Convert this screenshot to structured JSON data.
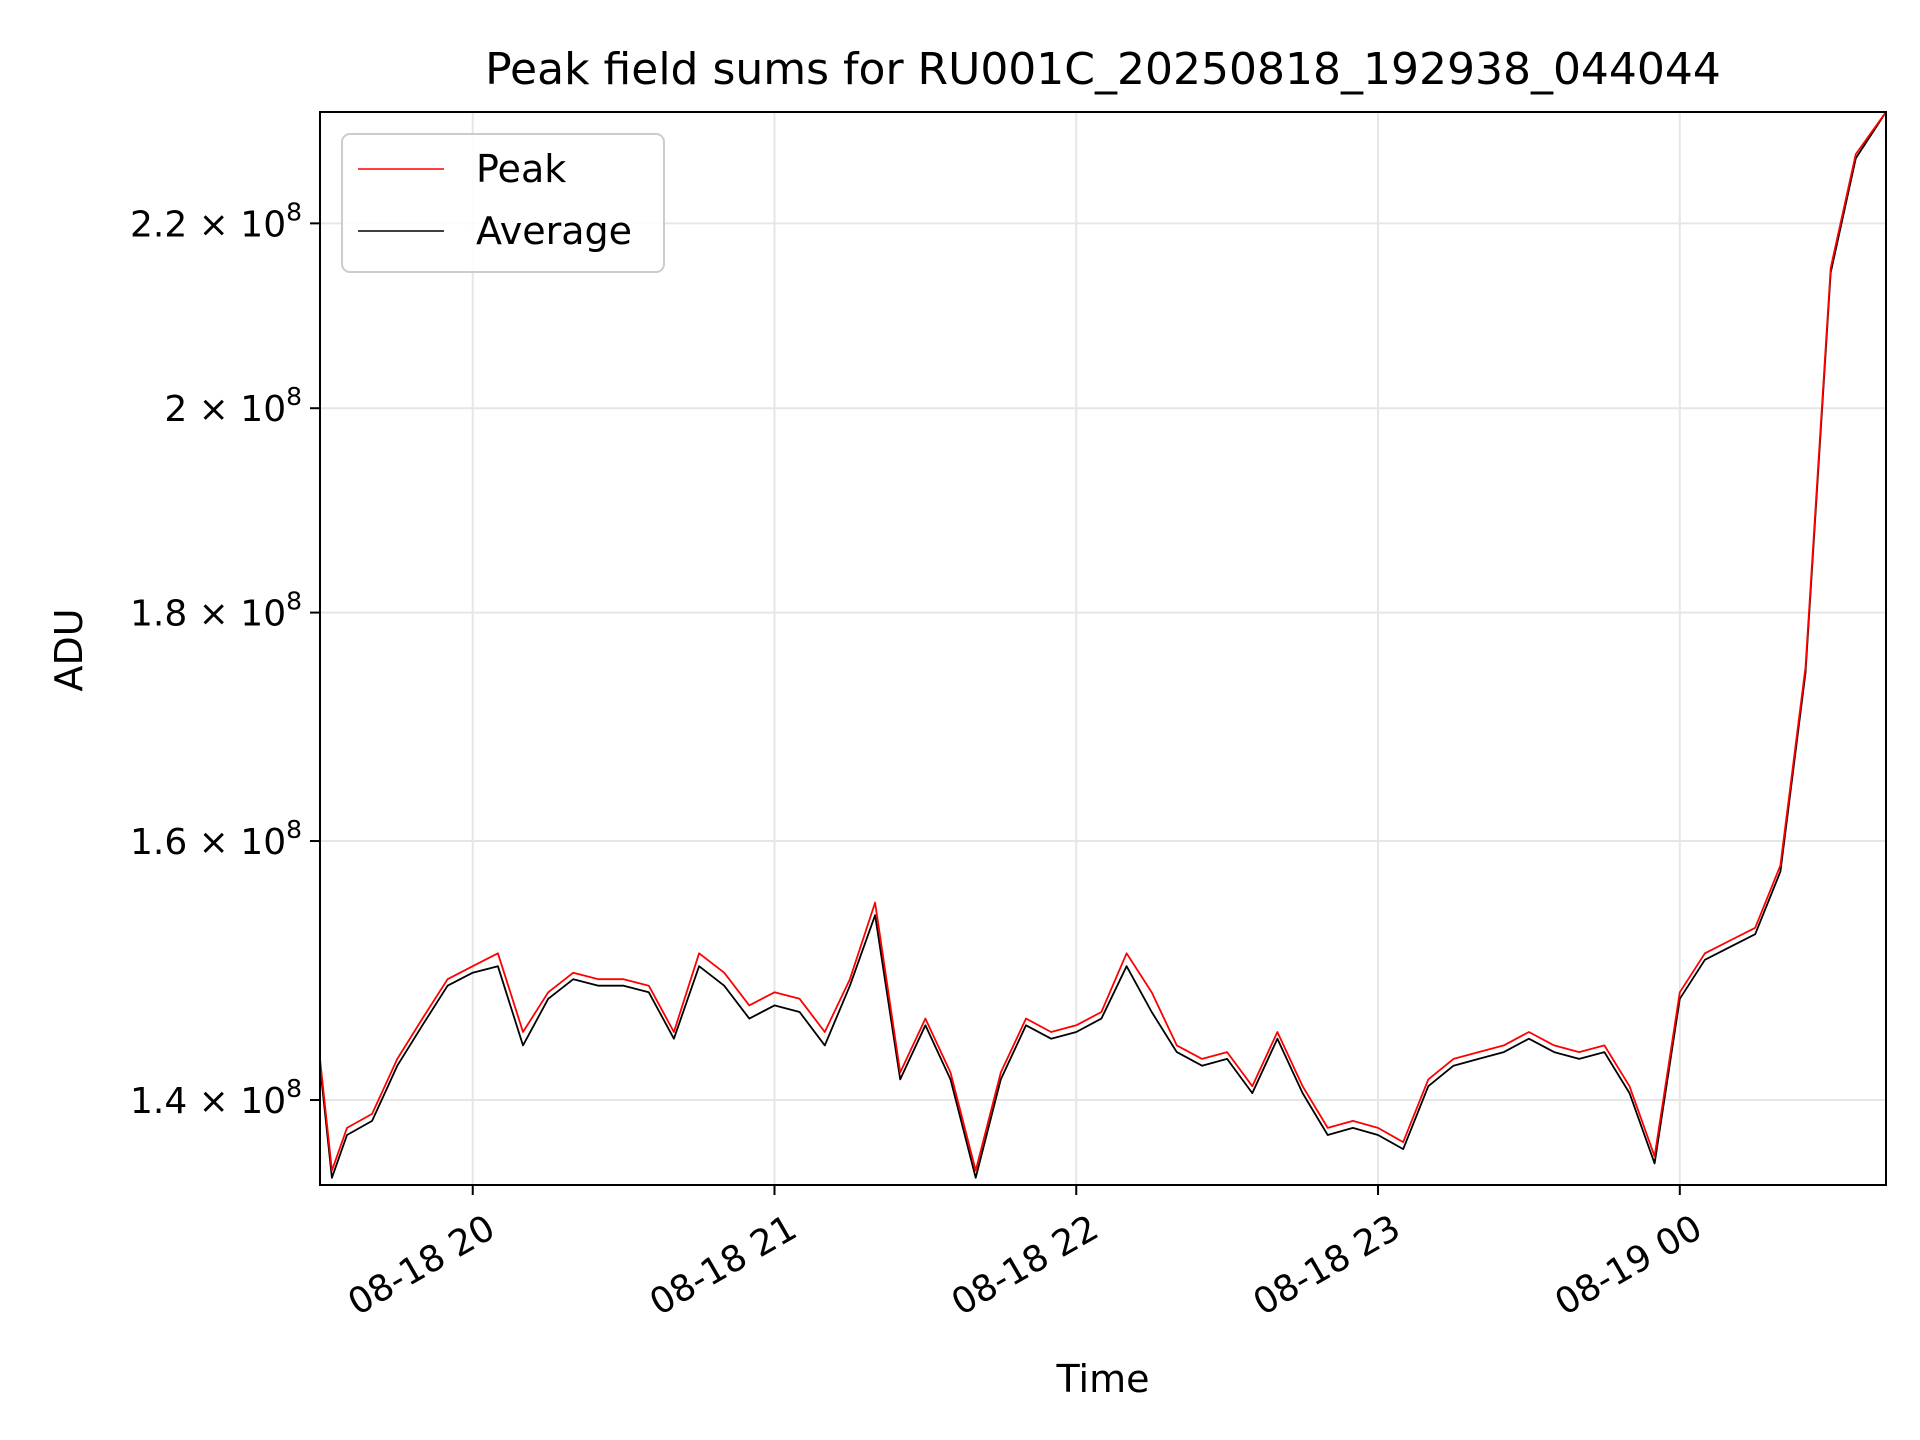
{
  "chart_data": {
    "type": "line",
    "title": "Peak field sums for RU001C_20250818_192938_044044",
    "xlabel": "Time",
    "ylabel": "ADU",
    "y_scale": "log",
    "grid": true,
    "legend_position": "upper left",
    "xlim": [
      "2025-08-18 19:29:38",
      "2025-08-19 00:41:00"
    ],
    "ylim": [
      134000000,
      233000000
    ],
    "x_ticks": [
      {
        "value": "2025-08-18 20:00",
        "label": "08-18 20"
      },
      {
        "value": "2025-08-18 21:00",
        "label": "08-18 21"
      },
      {
        "value": "2025-08-18 22:00",
        "label": "08-18 22"
      },
      {
        "value": "2025-08-18 23:00",
        "label": "08-18 23"
      },
      {
        "value": "2025-08-19 00:00",
        "label": "08-19 00"
      }
    ],
    "y_ticks": [
      {
        "value": 140000000,
        "mantissa": "1.4",
        "exp": "8"
      },
      {
        "value": 160000000,
        "mantissa": "1.6",
        "exp": "8"
      },
      {
        "value": 180000000,
        "mantissa": "1.8",
        "exp": "8"
      },
      {
        "value": 200000000,
        "mantissa": "2",
        "exp": "8"
      },
      {
        "value": 220000000,
        "mantissa": "2.2",
        "exp": "8"
      }
    ],
    "x": [
      "2025-08-18 19:29:38",
      "2025-08-18 19:32",
      "2025-08-18 19:35",
      "2025-08-18 19:40",
      "2025-08-18 19:45",
      "2025-08-18 19:50",
      "2025-08-18 19:55",
      "2025-08-18 20:00",
      "2025-08-18 20:05",
      "2025-08-18 20:10",
      "2025-08-18 20:15",
      "2025-08-18 20:20",
      "2025-08-18 20:25",
      "2025-08-18 20:30",
      "2025-08-18 20:35",
      "2025-08-18 20:40",
      "2025-08-18 20:45",
      "2025-08-18 20:50",
      "2025-08-18 20:55",
      "2025-08-18 21:00",
      "2025-08-18 21:05",
      "2025-08-18 21:10",
      "2025-08-18 21:15",
      "2025-08-18 21:20",
      "2025-08-18 21:25",
      "2025-08-18 21:30",
      "2025-08-18 21:35",
      "2025-08-18 21:40",
      "2025-08-18 21:45",
      "2025-08-18 21:50",
      "2025-08-18 21:55",
      "2025-08-18 22:00",
      "2025-08-18 22:05",
      "2025-08-18 22:10",
      "2025-08-18 22:15",
      "2025-08-18 22:20",
      "2025-08-18 22:25",
      "2025-08-18 22:30",
      "2025-08-18 22:35",
      "2025-08-18 22:40",
      "2025-08-18 22:45",
      "2025-08-18 22:50",
      "2025-08-18 22:55",
      "2025-08-18 23:00",
      "2025-08-18 23:05",
      "2025-08-18 23:10",
      "2025-08-18 23:15",
      "2025-08-18 23:20",
      "2025-08-18 23:25",
      "2025-08-18 23:30",
      "2025-08-18 23:35",
      "2025-08-18 23:40",
      "2025-08-18 23:45",
      "2025-08-18 23:50",
      "2025-08-18 23:55",
      "2025-08-19 00:00",
      "2025-08-19 00:05",
      "2025-08-19 00:10",
      "2025-08-19 00:15",
      "2025-08-19 00:20",
      "2025-08-19 00:25",
      "2025-08-19 00:30",
      "2025-08-19 00:35",
      "2025-08-19 00:41"
    ],
    "series": [
      {
        "name": "Peak",
        "color": "#ff0000",
        "values": [
          143000000,
          135000000,
          138000000,
          139000000,
          143000000,
          146000000,
          149000000,
          150000000,
          151000000,
          145000000,
          148000000,
          149500000,
          149000000,
          149000000,
          148500000,
          145000000,
          151000000,
          149500000,
          147000000,
          148000000,
          147500000,
          145000000,
          149000000,
          155000000,
          142000000,
          146000000,
          142000000,
          135000000,
          142000000,
          146000000,
          145000000,
          145500000,
          146500000,
          151000000,
          148000000,
          144000000,
          143000000,
          143500000,
          141000000,
          145000000,
          141000000,
          138000000,
          138500000,
          138000000,
          137000000,
          141500000,
          143000000,
          143500000,
          144000000,
          145000000,
          144000000,
          143500000,
          144000000,
          141000000,
          136000000,
          148000000,
          151000000,
          152000000,
          153000000,
          158000000,
          175000000,
          215000000,
          228000000,
          233000000
        ]
      },
      {
        "name": "Average",
        "color": "#000000",
        "values": [
          142500000,
          134500000,
          137500000,
          138500000,
          142500000,
          145500000,
          148500000,
          149500000,
          150000000,
          144000000,
          147500000,
          149000000,
          148500000,
          148500000,
          148000000,
          144500000,
          150000000,
          148500000,
          146000000,
          147000000,
          146500000,
          144000000,
          148500000,
          154000000,
          141500000,
          145500000,
          141500000,
          134500000,
          141500000,
          145500000,
          144500000,
          145000000,
          146000000,
          150000000,
          146500000,
          143500000,
          142500000,
          143000000,
          140500000,
          144500000,
          140500000,
          137500000,
          138000000,
          137500000,
          136500000,
          141000000,
          142500000,
          143000000,
          143500000,
          144500000,
          143500000,
          143000000,
          143500000,
          140500000,
          135500000,
          147500000,
          150500000,
          151500000,
          152500000,
          157500000,
          174500000,
          214500000,
          227500000,
          233000000
        ]
      }
    ]
  }
}
